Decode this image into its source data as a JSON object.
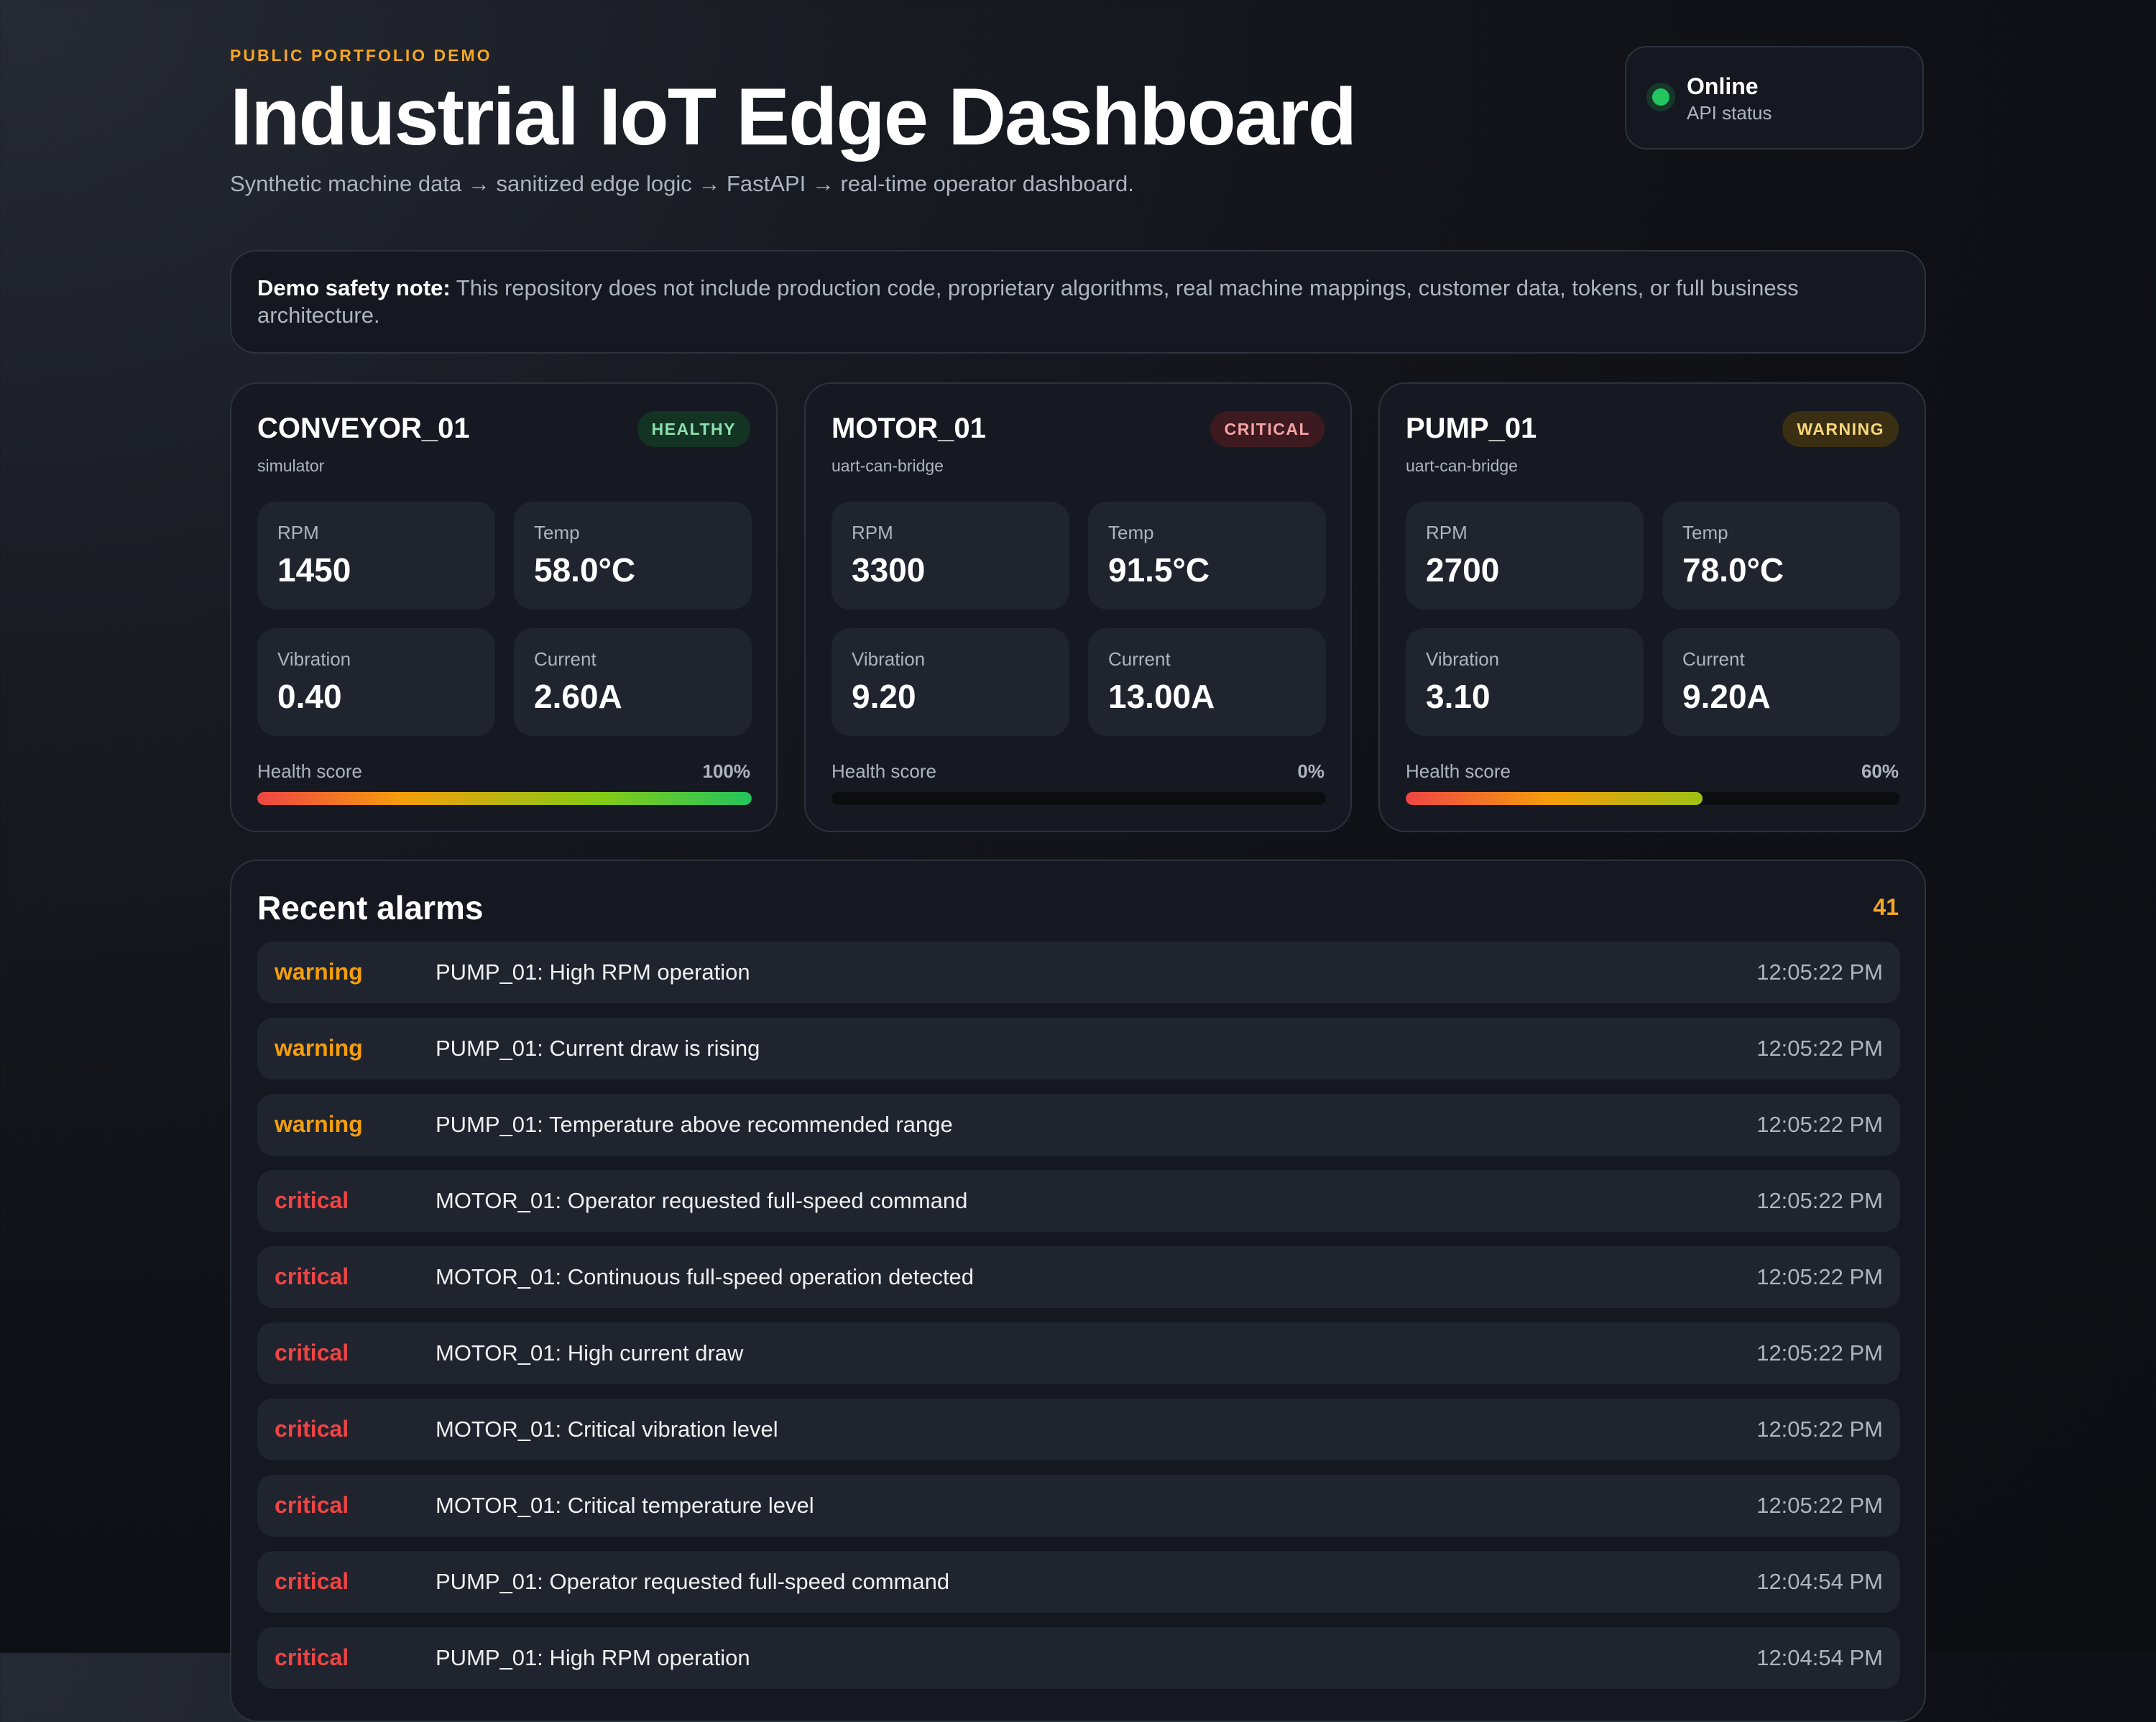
{
  "header": {
    "eyebrow": "PUBLIC PORTFOLIO DEMO",
    "title": "Industrial IoT Edge Dashboard",
    "subtitle": "Synthetic machine data → sanitized edge logic → FastAPI → real-time operator dashboard."
  },
  "api_status": {
    "label": "Online",
    "sublabel": "API status",
    "color": "#22c55e"
  },
  "safety_note": {
    "label": "Demo safety note:",
    "text": "This repository does not include production code, proprietary algorithms, real machine mappings, customer data, tokens, or full business architecture."
  },
  "machines": [
    {
      "name": "CONVEYOR_01",
      "source": "simulator",
      "status": "HEALTHY",
      "metrics": [
        {
          "label": "RPM",
          "value": "1450"
        },
        {
          "label": "Temp",
          "value": "58.0°C"
        },
        {
          "label": "Vibration",
          "value": "0.40"
        },
        {
          "label": "Current",
          "value": "2.60A"
        }
      ],
      "health_label": "Health score",
      "health_text": "100%",
      "health_value": 100
    },
    {
      "name": "MOTOR_01",
      "source": "uart-can-bridge",
      "status": "CRITICAL",
      "metrics": [
        {
          "label": "RPM",
          "value": "3300"
        },
        {
          "label": "Temp",
          "value": "91.5°C"
        },
        {
          "label": "Vibration",
          "value": "9.20"
        },
        {
          "label": "Current",
          "value": "13.00A"
        }
      ],
      "health_label": "Health score",
      "health_text": "0%",
      "health_value": 0
    },
    {
      "name": "PUMP_01",
      "source": "uart-can-bridge",
      "status": "WARNING",
      "metrics": [
        {
          "label": "RPM",
          "value": "2700"
        },
        {
          "label": "Temp",
          "value": "78.0°C"
        },
        {
          "label": "Vibration",
          "value": "3.10"
        },
        {
          "label": "Current",
          "value": "9.20A"
        }
      ],
      "health_label": "Health score",
      "health_text": "60%",
      "health_value": 60
    }
  ],
  "alarms": {
    "title": "Recent alarms",
    "count": "41",
    "items": [
      {
        "severity": "warning",
        "message": "PUMP_01: High RPM operation",
        "time": "12:05:22 PM"
      },
      {
        "severity": "warning",
        "message": "PUMP_01: Current draw is rising",
        "time": "12:05:22 PM"
      },
      {
        "severity": "warning",
        "message": "PUMP_01: Temperature above recommended range",
        "time": "12:05:22 PM"
      },
      {
        "severity": "critical",
        "message": "MOTOR_01: Operator requested full-speed command",
        "time": "12:05:22 PM"
      },
      {
        "severity": "critical",
        "message": "MOTOR_01: Continuous full-speed operation detected",
        "time": "12:05:22 PM"
      },
      {
        "severity": "critical",
        "message": "MOTOR_01: High current draw",
        "time": "12:05:22 PM"
      },
      {
        "severity": "critical",
        "message": "MOTOR_01: Critical vibration level",
        "time": "12:05:22 PM"
      },
      {
        "severity": "critical",
        "message": "MOTOR_01: Critical temperature level",
        "time": "12:05:22 PM"
      },
      {
        "severity": "critical",
        "message": "PUMP_01: Operator requested full-speed command",
        "time": "12:04:54 PM"
      },
      {
        "severity": "critical",
        "message": "PUMP_01: High RPM operation",
        "time": "12:04:54 PM"
      }
    ]
  },
  "colors": {
    "accent": "#f5a623",
    "healthy": "#22c55e",
    "warning": "#f59e0b",
    "critical": "#ef4444"
  }
}
